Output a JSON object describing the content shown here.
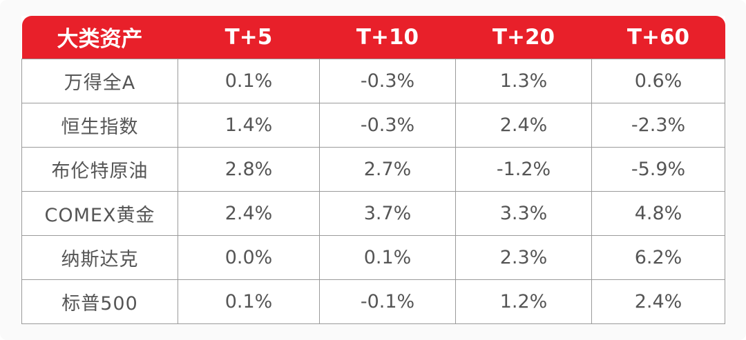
{
  "colors": {
    "header_bg": "#e8202a",
    "header_text": "#ffffff",
    "cell_text": "#555555",
    "grid_line": "#9a9a9a"
  },
  "table": {
    "headers": [
      "大类资产",
      "T+5",
      "T+10",
      "T+20",
      "T+60"
    ],
    "rows": [
      [
        "万得全A",
        "0.1%",
        "-0.3%",
        "1.3%",
        "0.6%"
      ],
      [
        "恒生指数",
        "1.4%",
        "-0.3%",
        "2.4%",
        "-2.3%"
      ],
      [
        "布伦特原油",
        "2.8%",
        "2.7%",
        "-1.2%",
        "-5.9%"
      ],
      [
        "COMEX黄金",
        "2.4%",
        "3.7%",
        "3.3%",
        "4.8%"
      ],
      [
        "纳斯达克",
        "0.0%",
        "0.1%",
        "2.3%",
        "6.2%"
      ],
      [
        "标普500",
        "0.1%",
        "-0.1%",
        "1.2%",
        "2.4%"
      ]
    ]
  }
}
